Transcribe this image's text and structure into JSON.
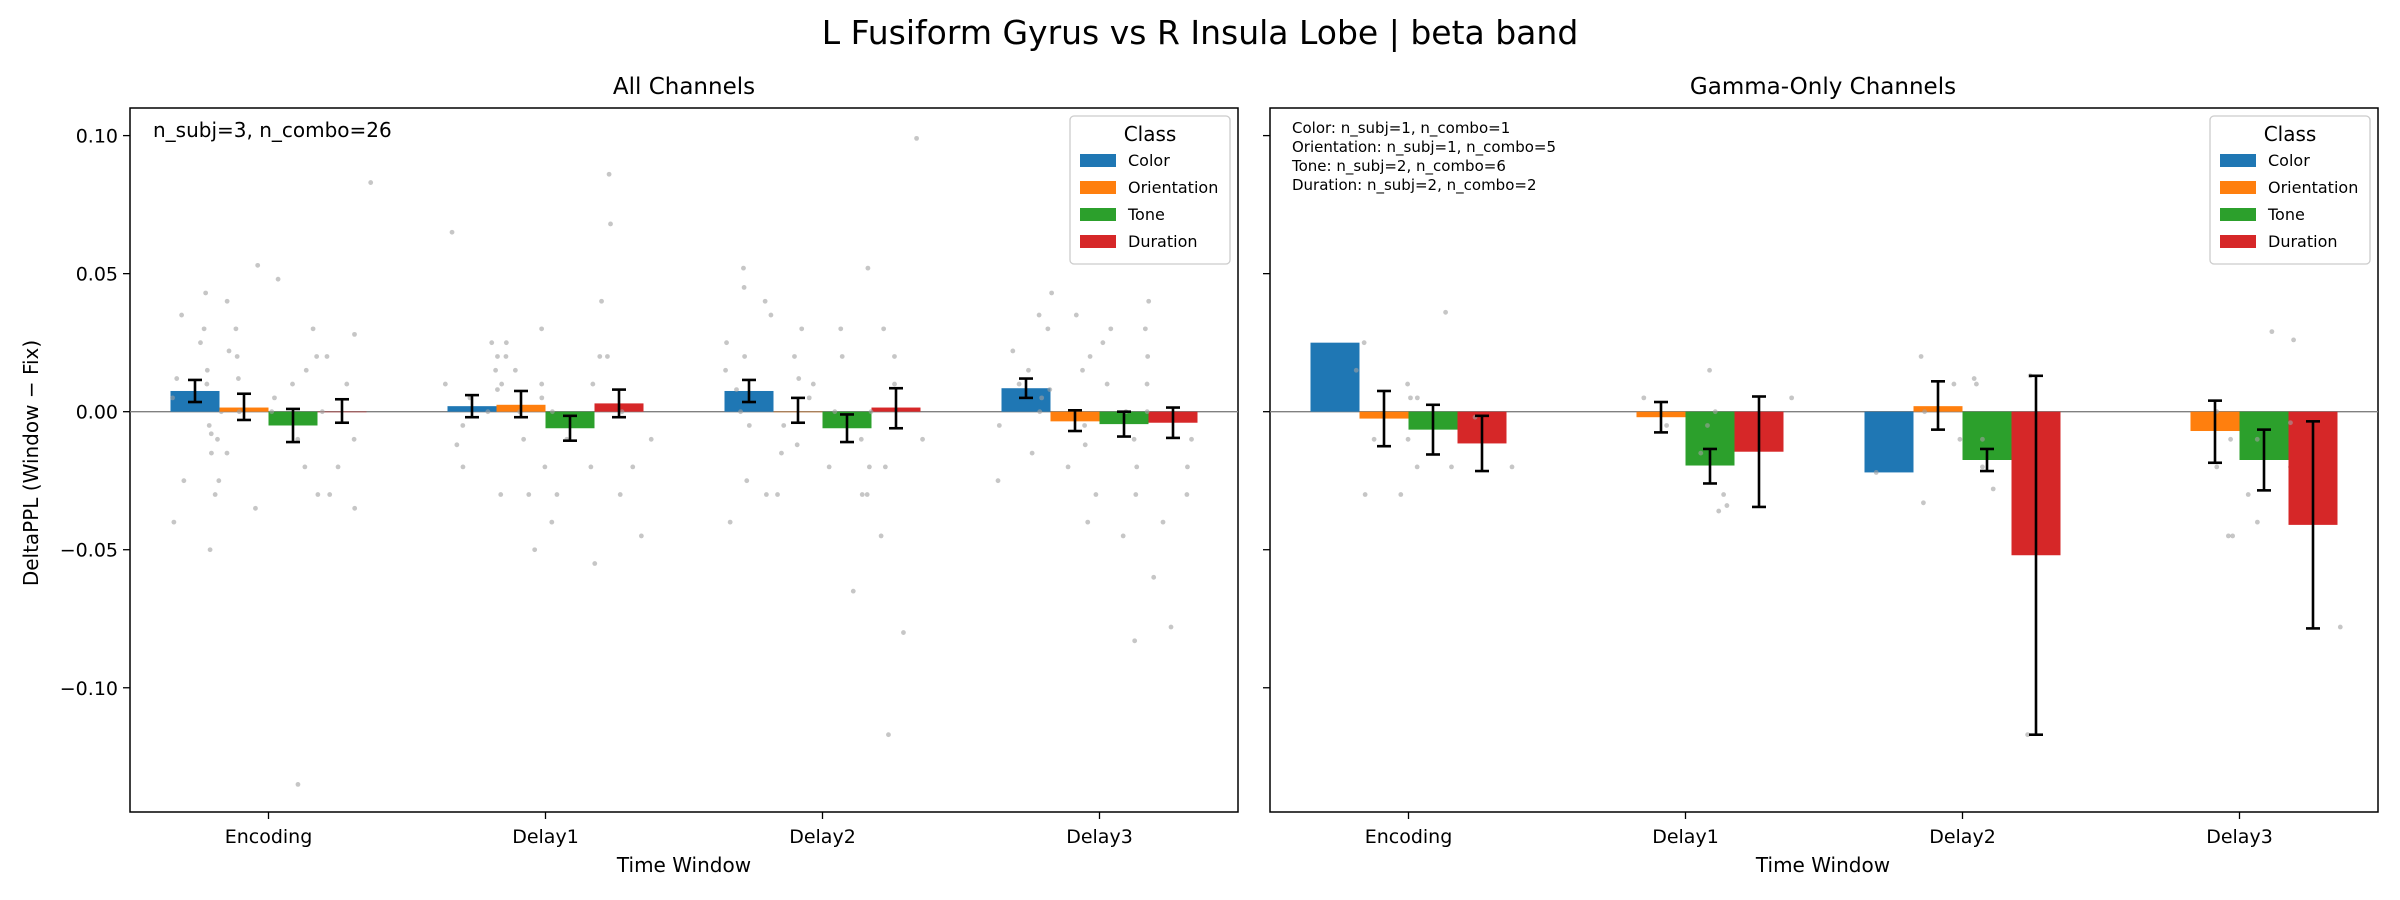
{
  "figure": {
    "suptitle": "L Fusiform Gyrus vs R Insula Lobe  |  beta band",
    "ylabel": "DeltaPPL (Window − Fix)",
    "legend_title": "Class",
    "legend_placement": "upper-right"
  },
  "chart_data": [
    {
      "type": "bar",
      "title": "All Channels",
      "xlabel": "Time Window",
      "ylabel": "DeltaPPL (Window − Fix)",
      "ylim": [
        -0.145,
        0.11
      ],
      "yticks": [
        0.1,
        0.05,
        0.0,
        -0.05,
        -0.1
      ],
      "ytick_labels": [
        "0.10",
        "0.05",
        "0.00",
        "−0.05",
        "−0.10"
      ],
      "categories": [
        "Encoding",
        "Delay1",
        "Delay2",
        "Delay3"
      ],
      "grid": false,
      "zero_line": true,
      "annotations": [
        "n_subj=3, n_combo=26"
      ],
      "series": [
        {
          "name": "Color",
          "color": "#1f77b4",
          "values": [
            0.0075,
            0.002,
            0.0075,
            0.0085
          ],
          "err_low": [
            0.0035,
            -0.002,
            0.0035,
            0.005
          ],
          "err_high": [
            0.0115,
            0.006,
            0.0115,
            0.012
          ],
          "points": [
            [
              0.043,
              0.035,
              0.03,
              0.022,
              0.015,
              0.01,
              0.005,
              0.0,
              -0.005,
              -0.01,
              -0.015,
              -0.025,
              -0.03,
              -0.04,
              0.025,
              0.012
            ],
            [
              0.065,
              0.025,
              0.02,
              0.015,
              0.01,
              0.005,
              0.0,
              -0.005,
              -0.012,
              -0.02,
              -0.03,
              0.008
            ],
            [
              0.052,
              0.045,
              0.035,
              0.025,
              0.015,
              0.008,
              0.0,
              -0.005,
              -0.015,
              -0.025,
              -0.03,
              -0.04,
              0.02
            ],
            [
              0.043,
              0.03,
              0.022,
              0.015,
              0.008,
              0.0,
              -0.005,
              -0.015,
              -0.025,
              0.035,
              0.01
            ]
          ]
        },
        {
          "name": "Orientation",
          "color": "#ff7f0e",
          "values": [
            0.0015,
            0.0025,
            0.0,
            -0.0035
          ],
          "err_low": [
            -0.003,
            -0.002,
            -0.004,
            -0.007
          ],
          "err_high": [
            0.0065,
            0.0075,
            0.005,
            0.0005
          ],
          "points": [
            [
              0.053,
              0.04,
              0.03,
              0.02,
              0.012,
              0.005,
              0.0,
              -0.008,
              -0.015,
              -0.025,
              -0.035,
              -0.05
            ],
            [
              0.025,
              0.02,
              0.015,
              0.01,
              0.005,
              0.0,
              -0.01,
              -0.02,
              -0.03,
              -0.05
            ],
            [
              0.04,
              0.03,
              0.02,
              0.012,
              0.005,
              -0.005,
              -0.012,
              -0.02,
              -0.03
            ],
            [
              0.035,
              0.025,
              0.015,
              0.005,
              -0.005,
              -0.012,
              -0.02,
              -0.03,
              -0.04
            ]
          ]
        },
        {
          "name": "Tone",
          "color": "#2ca02c",
          "values": [
            -0.005,
            -0.006,
            -0.006,
            -0.0045
          ],
          "err_low": [
            -0.011,
            -0.0105,
            -0.011,
            -0.009
          ],
          "err_high": [
            0.001,
            -0.0015,
            -0.001,
            0.0
          ],
          "points": [
            [
              0.048,
              0.03,
              0.02,
              0.01,
              0.0,
              -0.01,
              -0.02,
              -0.03,
              -0.135,
              0.015
            ],
            [
              0.03,
              0.02,
              0.01,
              0.0,
              -0.01,
              -0.02,
              -0.03,
              -0.055,
              -0.04
            ],
            [
              0.052,
              0.03,
              0.02,
              0.01,
              0.0,
              -0.01,
              -0.02,
              -0.03,
              -0.045,
              -0.065
            ],
            [
              0.04,
              0.03,
              0.02,
              0.01,
              0.0,
              -0.01,
              -0.02,
              -0.03,
              -0.045,
              -0.083
            ]
          ]
        },
        {
          "name": "Duration",
          "color": "#d62728",
          "values": [
            0.0,
            0.003,
            0.0015,
            -0.004
          ],
          "err_low": [
            -0.004,
            -0.002,
            -0.006,
            -0.0095
          ],
          "err_high": [
            0.0045,
            0.008,
            0.0085,
            0.0015
          ],
          "points": [
            [
              0.083,
              0.028,
              0.02,
              0.01,
              0.0,
              -0.01,
              -0.02,
              -0.03,
              -0.035
            ],
            [
              0.086,
              0.068,
              0.04,
              0.02,
              0.01,
              0.0,
              -0.01,
              -0.02,
              -0.03,
              -0.045
            ],
            [
              0.099,
              0.03,
              0.02,
              0.01,
              0.0,
              -0.01,
              -0.02,
              -0.03,
              -0.08,
              -0.117
            ],
            [
              0.03,
              0.02,
              0.01,
              0.0,
              -0.01,
              -0.02,
              -0.03,
              -0.04,
              -0.06,
              -0.078
            ]
          ]
        }
      ]
    },
    {
      "type": "bar",
      "title": "Gamma-Only Channels",
      "xlabel": "Time Window",
      "ylim": [
        -0.145,
        0.11
      ],
      "yticks": [
        0.1,
        0.05,
        0.0,
        -0.05,
        -0.1
      ],
      "categories": [
        "Encoding",
        "Delay1",
        "Delay2",
        "Delay3"
      ],
      "grid": false,
      "zero_line": true,
      "annotations": [
        "Color: n_subj=1, n_combo=1",
        "Orientation: n_subj=1, n_combo=5",
        "Tone: n_subj=2, n_combo=6",
        "Duration: n_subj=2, n_combo=2"
      ],
      "series": [
        {
          "name": "Color",
          "color": "#1f77b4",
          "values": [
            0.025,
            null,
            -0.022,
            null
          ],
          "err_low": [
            null,
            null,
            null,
            null
          ],
          "err_high": [
            null,
            null,
            null,
            null
          ],
          "points": [
            [
              0.025
            ],
            [],
            [
              -0.022
            ],
            []
          ]
        },
        {
          "name": "Orientation",
          "color": "#ff7f0e",
          "values": [
            -0.0025,
            -0.002,
            0.002,
            -0.007
          ],
          "err_low": [
            -0.0125,
            -0.0075,
            -0.0065,
            -0.0185
          ],
          "err_high": [
            0.0075,
            0.0035,
            0.011,
            0.004
          ],
          "points": [
            [
              0.015,
              0.005,
              -0.01,
              -0.02,
              -0.03
            ],
            [
              0.005,
              -0.005,
              -0.018
            ],
            [
              0.02,
              0.01,
              0.0,
              -0.01,
              -0.033
            ],
            [
              0.0,
              -0.01,
              -0.02,
              -0.045
            ]
          ]
        },
        {
          "name": "Tone",
          "color": "#2ca02c",
          "values": [
            -0.0065,
            -0.0195,
            -0.0175,
            -0.0175
          ],
          "err_low": [
            -0.0155,
            -0.026,
            -0.0215,
            -0.0285
          ],
          "err_high": [
            0.0025,
            -0.0135,
            -0.0135,
            -0.0065
          ],
          "points": [
            [
              0.036,
              0.005,
              -0.01,
              -0.02,
              -0.03,
              0.01
            ],
            [
              0.015,
              -0.005,
              -0.015,
              -0.03,
              -0.036,
              0.0
            ],
            [
              0.01,
              -0.01,
              -0.02,
              -0.028,
              0.012,
              -0.015
            ],
            [
              0.026,
              0.029,
              -0.01,
              -0.02,
              -0.03,
              -0.045,
              -0.04
            ]
          ]
        },
        {
          "name": "Duration",
          "color": "#d62728",
          "values": [
            -0.0115,
            -0.0145,
            -0.052,
            -0.041
          ],
          "err_low": [
            -0.0215,
            -0.0345,
            -0.117,
            -0.0785
          ],
          "err_high": [
            -0.0015,
            0.0055,
            0.013,
            -0.0035
          ],
          "points": [
            [
              -0.002,
              -0.02
            ],
            [
              0.005,
              -0.034
            ],
            [
              0.013,
              -0.117
            ],
            [
              -0.004,
              -0.078
            ]
          ]
        }
      ]
    }
  ]
}
